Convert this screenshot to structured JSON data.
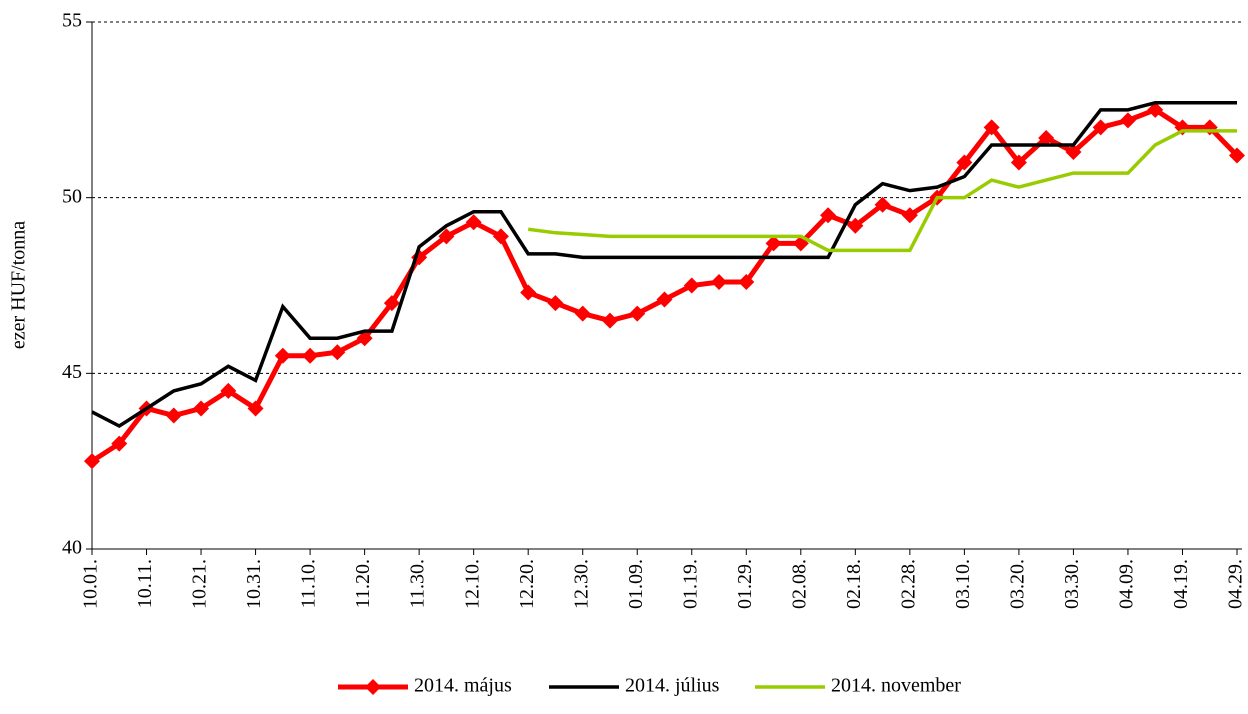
{
  "chart_data": {
    "type": "line",
    "y_label": "ezer HUF/tonna",
    "categories": [
      "10.01.",
      null,
      "10.11.",
      null,
      "10.21.",
      null,
      "10.31.",
      null,
      "11.10.",
      null,
      "11.20.",
      null,
      "11.30.",
      null,
      "12.10.",
      null,
      "12.20.",
      null,
      "12.30.",
      null,
      "01.09.",
      null,
      "01.19.",
      null,
      "01.29.",
      null,
      "02.08.",
      null,
      "02.18.",
      null,
      "02.28.",
      null,
      "03.10.",
      null,
      "03.20.",
      null,
      "03.30.",
      null,
      "04.09.",
      null,
      "04.19.",
      null,
      "04.29."
    ],
    "series": [
      {
        "name": "2014. május",
        "color": "#ff0000",
        "marker": "diamond",
        "values": [
          42.5,
          43.0,
          44.0,
          43.8,
          44.0,
          44.5,
          44.0,
          45.5,
          45.5,
          45.6,
          46.0,
          47.0,
          48.3,
          48.9,
          49.3,
          48.9,
          47.3,
          47.0,
          46.7,
          46.5,
          46.7,
          47.1,
          47.5,
          47.6,
          47.6,
          48.7,
          48.7,
          49.5,
          49.2,
          49.8,
          49.5,
          50.0,
          51.0,
          52.0,
          51.0,
          51.7,
          51.3,
          52.0,
          52.2,
          52.5,
          52.0,
          52.0,
          51.2
        ]
      },
      {
        "name": "2014. július",
        "color": "#000000",
        "values": [
          43.9,
          43.5,
          44.0,
          44.5,
          44.7,
          45.2,
          44.8,
          46.9,
          46.0,
          46.0,
          46.2,
          46.2,
          48.6,
          49.2,
          49.6,
          49.6,
          48.4,
          48.4,
          48.3,
          48.3,
          48.3,
          48.3,
          48.3,
          48.3,
          48.3,
          48.3,
          48.3,
          48.3,
          49.8,
          50.4,
          50.2,
          50.3,
          50.6,
          51.5,
          51.5,
          51.5,
          51.5,
          52.5,
          52.5,
          52.7,
          52.7,
          52.7,
          52.7
        ]
      },
      {
        "name": "2014. november",
        "color": "#99cc00",
        "values": [
          null,
          null,
          null,
          null,
          null,
          null,
          null,
          null,
          null,
          null,
          null,
          null,
          null,
          null,
          null,
          null,
          49.1,
          49.0,
          48.95,
          48.9,
          48.9,
          48.9,
          48.9,
          48.9,
          48.9,
          48.9,
          48.9,
          48.5,
          48.5,
          48.5,
          48.5,
          50.0,
          50.0,
          50.5,
          50.3,
          50.5,
          50.7,
          50.7,
          50.7,
          51.5,
          51.9,
          51.9,
          51.9
        ]
      }
    ],
    "ylim": [
      40,
      55
    ],
    "yticks": [
      40,
      45,
      50,
      55
    ],
    "grid": true,
    "legend": "bottom"
  }
}
